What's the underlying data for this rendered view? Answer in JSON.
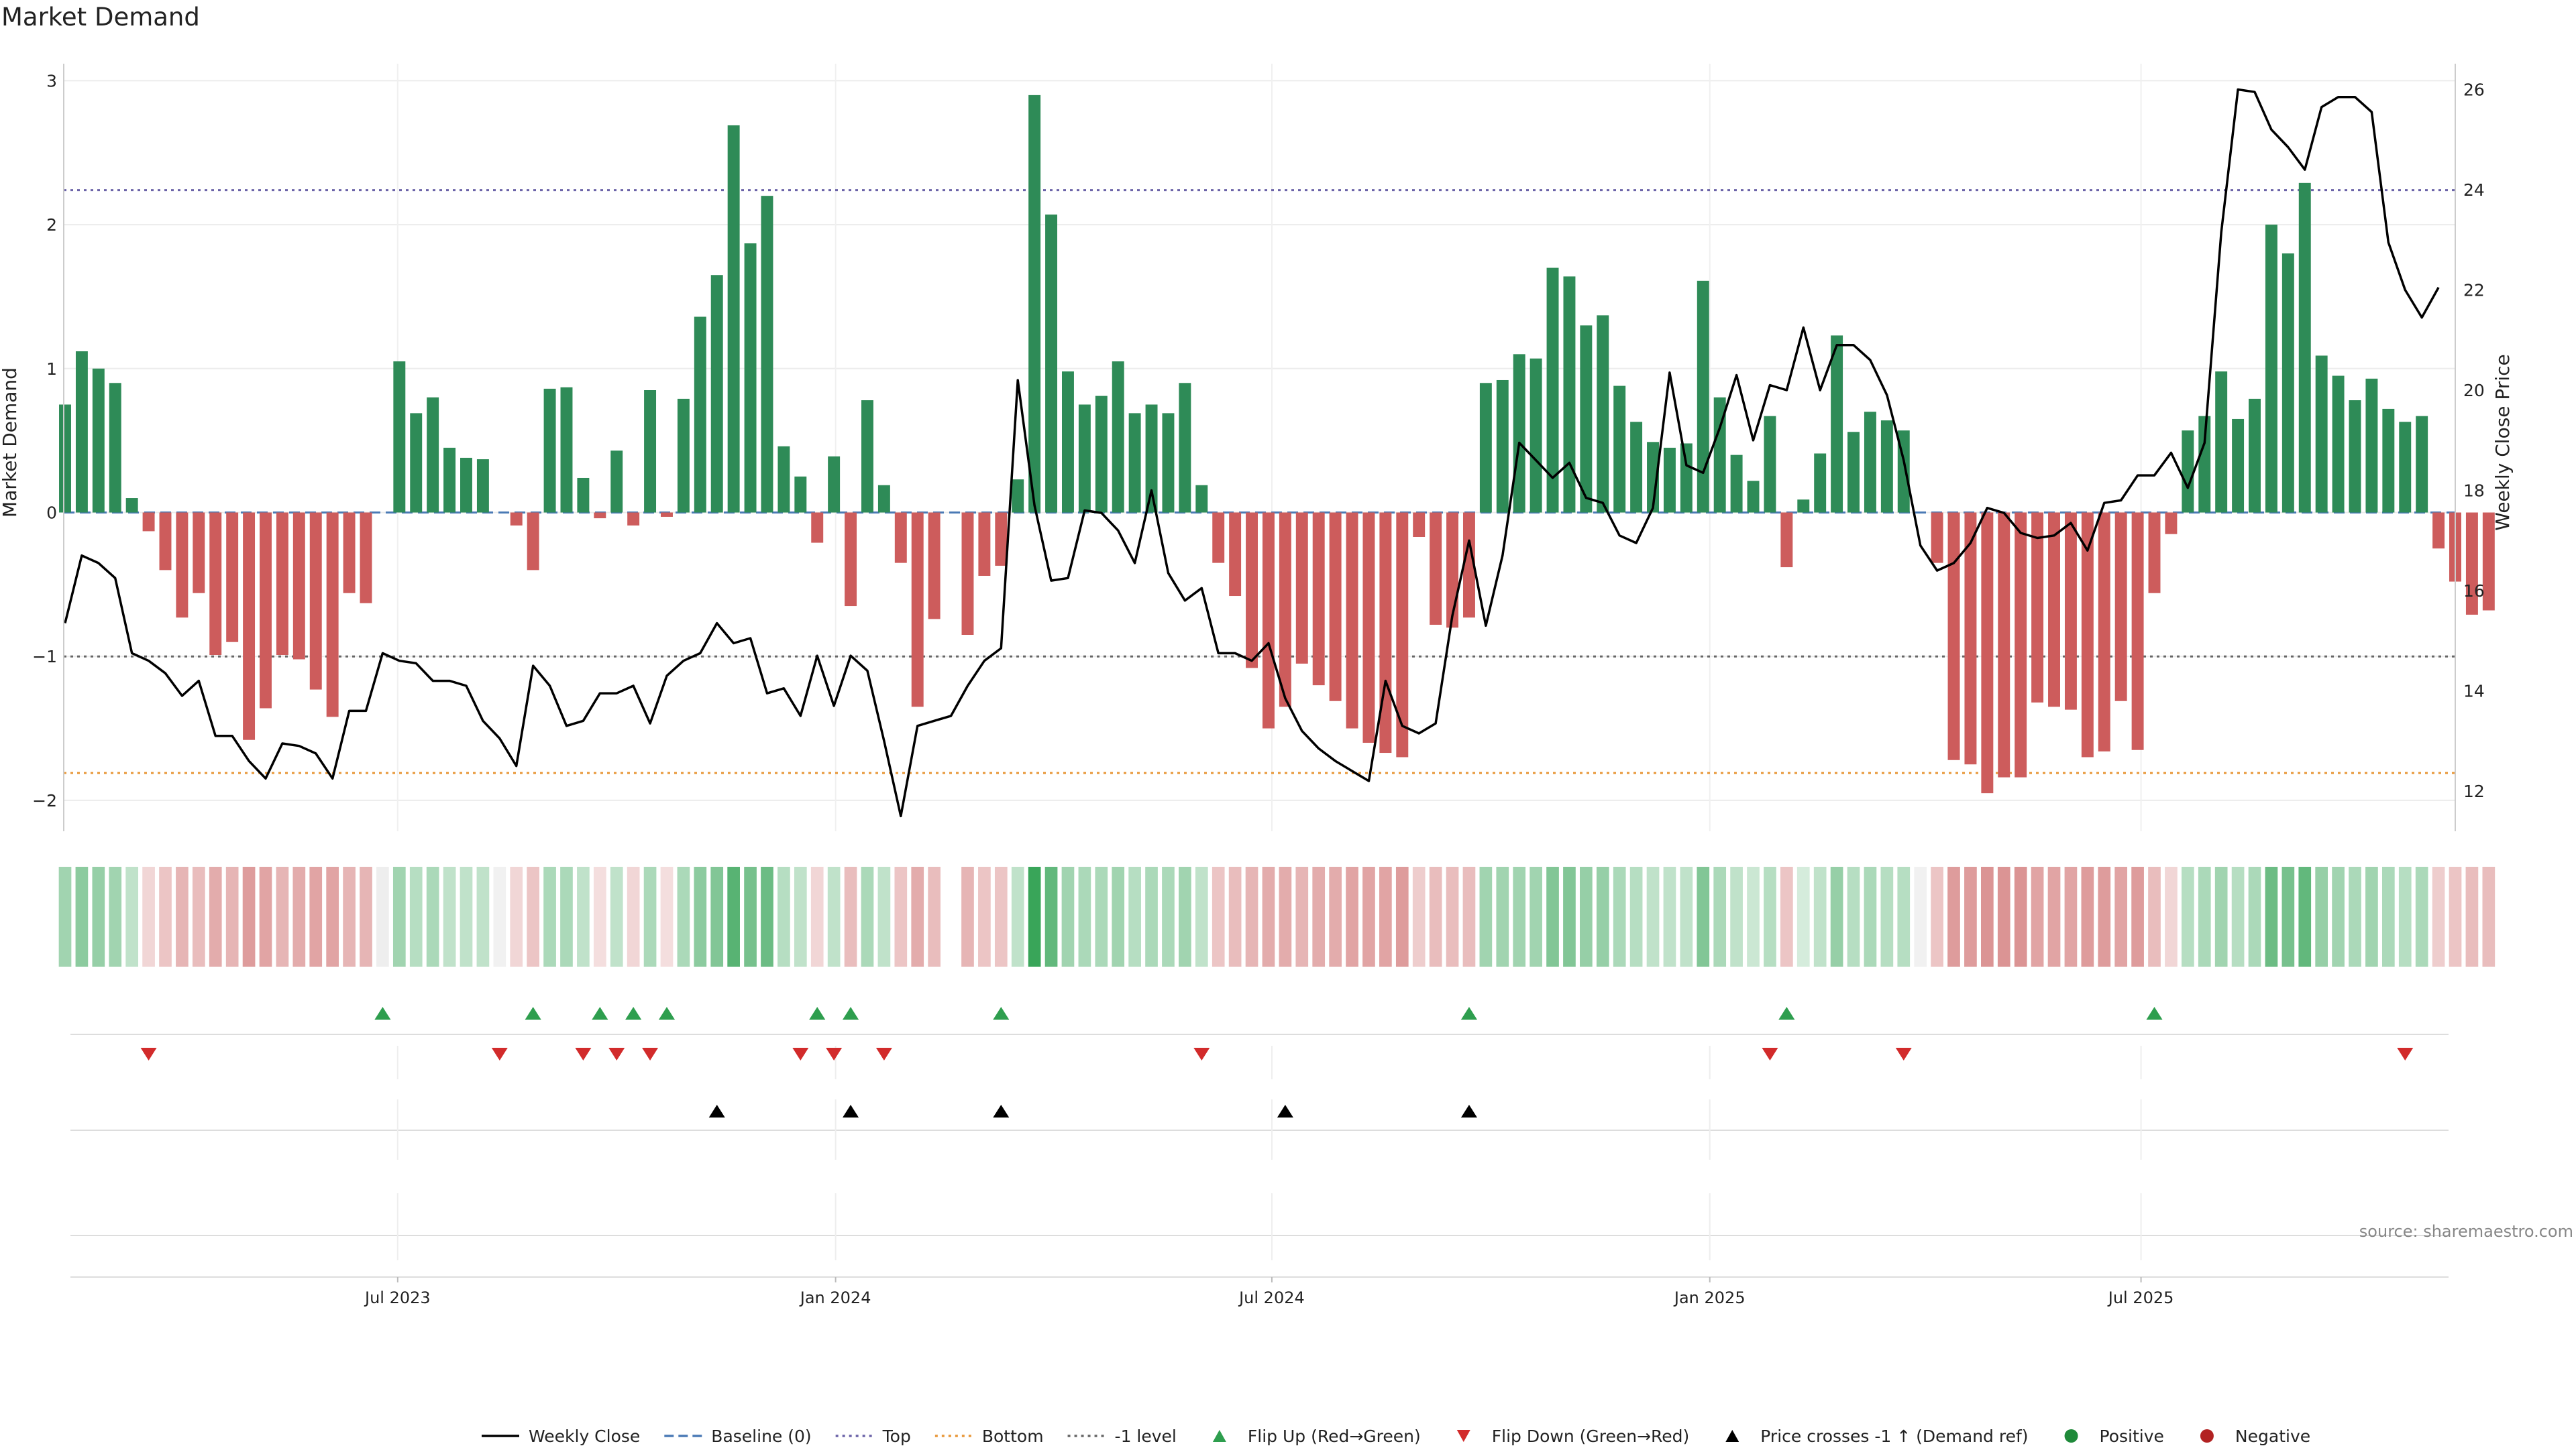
{
  "chart_data": {
    "type": "bar",
    "title": "Market Demand",
    "ylabel_left": "Market Demand",
    "ylabel_right": "Weekly Close Price",
    "ylim_left": [
      -2.2,
      3.15
    ],
    "ylim_right": [
      11.5,
      26.5
    ],
    "left_ticks": [
      -2,
      -1,
      0,
      1,
      2,
      3
    ],
    "left_tick_labels": [
      "−2",
      "−1",
      "0",
      "1",
      "2",
      "3"
    ],
    "right_ticks": [
      12,
      14,
      16,
      18,
      20,
      22,
      24,
      26
    ],
    "x_ticks": [
      "Jul 2023",
      "Jan 2024",
      "Jul 2024",
      "Jan 2025",
      "Jul 2025"
    ],
    "x_tick_week_index": [
      19.9,
      46.1,
      72.2,
      98.4,
      124.2
    ],
    "reference_lines": {
      "top": 2.24,
      "bottom": -1.81,
      "minus_one": -1.0
    },
    "source": "source: sharemaestro.com",
    "legend": [
      {
        "label": "Weekly Close",
        "kind": "line-solid",
        "color": "#000000"
      },
      {
        "label": "Baseline (0)",
        "kind": "line-dashed",
        "color": "#4a7ab5"
      },
      {
        "label": "Top",
        "kind": "line-dotted",
        "color": "#6b63a8"
      },
      {
        "label": "Bottom",
        "kind": "line-dotted",
        "color": "#e8983a"
      },
      {
        "label": "-1 level",
        "kind": "line-dotted",
        "color": "#666666"
      },
      {
        "label": "Flip Up (Red→Green)",
        "kind": "tri-up",
        "color": "#2e9e4e"
      },
      {
        "label": "Flip Down (Green→Red)",
        "kind": "tri-down",
        "color": "#d22b2b"
      },
      {
        "label": "Price crosses -1 ↑ (Demand ref)",
        "kind": "tri-up",
        "color": "#000000"
      },
      {
        "label": "Positive",
        "kind": "dot",
        "color": "#1f8a3a"
      },
      {
        "label": "Negative",
        "kind": "dot",
        "color": "#b22222"
      }
    ],
    "colors": {
      "positive": "#2e8b57",
      "negative": "#cd5c5c"
    },
    "demand": [
      0.75,
      1.12,
      1.0,
      0.9,
      0.1,
      -0.13,
      -0.4,
      -0.73,
      -0.56,
      -0.99,
      -0.9,
      -1.58,
      -1.36,
      -0.99,
      -1.02,
      -1.23,
      -1.42,
      -0.56,
      -0.63,
      0.0,
      1.05,
      0.69,
      0.8,
      0.45,
      0.38,
      0.37,
      0.0,
      -0.09,
      -0.4,
      0.86,
      0.87,
      0.24,
      -0.04,
      0.43,
      -0.09,
      0.85,
      -0.03,
      0.79,
      1.36,
      1.65,
      2.69,
      1.87,
      2.2,
      0.46,
      0.25,
      -0.21,
      0.39,
      -0.65,
      0.78,
      0.19,
      -0.35,
      -1.35,
      -0.74,
      0.0,
      -0.85,
      -0.44,
      -0.37,
      0.23,
      2.9,
      2.07,
      0.98,
      0.75,
      0.81,
      1.05,
      0.69,
      0.75,
      0.69,
      0.9,
      0.19,
      -0.35,
      -0.58,
      -1.08,
      -1.5,
      -1.35,
      -1.05,
      -1.2,
      -1.31,
      -1.5,
      -1.6,
      -1.67,
      -1.7,
      -0.17,
      -0.78,
      -0.8,
      -0.73,
      0.9,
      0.92,
      1.1,
      1.07,
      1.7,
      1.64,
      1.3,
      1.37,
      0.88,
      0.63,
      0.49,
      0.45,
      0.48,
      1.61,
      0.8,
      0.4,
      0.22,
      0.67,
      -0.38,
      0.09,
      0.41,
      1.23,
      0.56,
      0.7,
      0.64,
      0.57,
      0.0,
      -0.35,
      -1.72,
      -1.75,
      -1.95,
      -1.84,
      -1.84,
      -1.32,
      -1.35,
      -1.37,
      -1.7,
      -1.66,
      -1.31,
      -1.65,
      -0.56,
      -0.15,
      0.57,
      0.67,
      0.98,
      0.65,
      0.79,
      2.0,
      1.8,
      2.29,
      1.09,
      0.95,
      0.78,
      0.93,
      0.72,
      0.63,
      0.67,
      -0.25,
      -0.48,
      -0.71,
      -0.68
    ],
    "price": [
      15.35,
      16.7,
      16.55,
      16.25,
      14.75,
      14.6,
      14.35,
      13.9,
      14.2,
      13.1,
      13.1,
      12.6,
      12.25,
      12.95,
      12.9,
      12.75,
      12.25,
      13.6,
      13.6,
      14.75,
      14.6,
      14.55,
      14.2,
      14.2,
      14.1,
      13.4,
      13.05,
      12.5,
      14.5,
      14.1,
      13.3,
      13.4,
      13.95,
      13.95,
      14.1,
      13.35,
      14.3,
      14.6,
      14.75,
      15.35,
      14.95,
      15.05,
      13.95,
      14.05,
      13.5,
      14.7,
      13.7,
      14.7,
      14.4,
      13.0,
      11.5,
      13.3,
      13.4,
      13.5,
      14.1,
      14.6,
      14.85,
      20.2,
      17.7,
      16.2,
      16.25,
      17.6,
      17.55,
      17.2,
      16.55,
      18.0,
      16.35,
      15.8,
      16.05,
      14.75,
      14.75,
      14.6,
      14.95,
      13.85,
      13.2,
      12.85,
      12.6,
      12.4,
      12.2,
      14.2,
      13.3,
      13.15,
      13.35,
      15.5,
      17.0,
      15.3,
      16.7,
      18.95,
      18.6,
      18.25,
      18.55,
      17.85,
      17.75,
      17.1,
      16.95,
      17.65,
      20.35,
      18.5,
      18.35,
      19.25,
      20.3,
      19.0,
      20.1,
      20.0,
      21.25,
      20.0,
      20.9,
      20.9,
      20.6,
      19.9,
      18.6,
      16.9,
      16.4,
      16.55,
      16.95,
      17.65,
      17.55,
      17.15,
      17.05,
      17.1,
      17.35,
      16.8,
      17.75,
      17.8,
      18.3,
      18.3,
      18.75,
      18.05,
      18.95,
      23.15,
      26.0,
      25.95,
      25.2,
      24.85,
      24.4,
      25.65,
      25.85,
      25.85,
      25.55,
      22.95,
      22.0,
      21.45,
      22.05
    ],
    "heat_alpha": [
      0.45,
      0.55,
      0.5,
      0.45,
      0.3,
      0.25,
      0.35,
      0.45,
      0.4,
      0.5,
      0.45,
      0.6,
      0.55,
      0.45,
      0.5,
      0.55,
      0.55,
      0.45,
      0.45,
      0.3,
      0.45,
      0.35,
      0.4,
      0.3,
      0.3,
      0.3,
      0.25,
      0.25,
      0.35,
      0.4,
      0.4,
      0.3,
      0.2,
      0.3,
      0.25,
      0.4,
      0.2,
      0.4,
      0.55,
      0.6,
      0.8,
      0.65,
      0.7,
      0.35,
      0.3,
      0.25,
      0.3,
      0.4,
      0.4,
      0.3,
      0.35,
      0.5,
      0.4,
      0.0,
      0.45,
      0.35,
      0.35,
      0.3,
      0.95,
      0.75,
      0.45,
      0.4,
      0.4,
      0.45,
      0.35,
      0.4,
      0.4,
      0.45,
      0.3,
      0.35,
      0.4,
      0.45,
      0.5,
      0.5,
      0.45,
      0.5,
      0.5,
      0.55,
      0.55,
      0.55,
      0.6,
      0.3,
      0.4,
      0.4,
      0.4,
      0.45,
      0.45,
      0.45,
      0.45,
      0.6,
      0.6,
      0.5,
      0.5,
      0.4,
      0.35,
      0.3,
      0.3,
      0.3,
      0.6,
      0.4,
      0.3,
      0.25,
      0.35,
      0.35,
      0.2,
      0.3,
      0.5,
      0.35,
      0.4,
      0.35,
      0.35,
      0.25,
      0.35,
      0.6,
      0.6,
      0.65,
      0.65,
      0.65,
      0.55,
      0.55,
      0.55,
      0.6,
      0.6,
      0.55,
      0.6,
      0.4,
      0.25,
      0.35,
      0.4,
      0.45,
      0.35,
      0.4,
      0.7,
      0.65,
      0.75,
      0.5,
      0.45,
      0.4,
      0.45,
      0.4,
      0.35,
      0.4,
      0.3,
      0.35,
      0.4,
      0.4
    ],
    "flip_up": [
      19,
      28,
      32,
      34,
      36,
      45,
      47,
      56,
      84,
      103,
      125
    ],
    "flip_down": [
      5,
      26,
      31,
      33,
      35,
      44,
      46,
      49,
      68,
      102,
      110,
      140
    ],
    "price_cross": [
      39,
      47,
      56,
      73,
      84
    ]
  }
}
